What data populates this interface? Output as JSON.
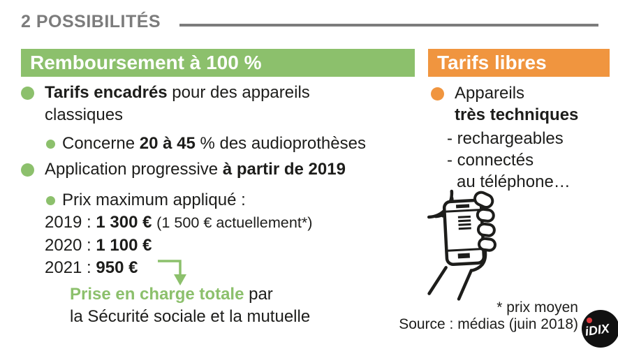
{
  "colors": {
    "green": "#8CC06C",
    "orange": "#F0953F",
    "gray": "#7C7C7C",
    "ink": "#1D1D1B",
    "red": "#E03A3E"
  },
  "header": {
    "title": "2 POSSIBILITÉS"
  },
  "left_column": {
    "banner": "Remboursement à 100 %",
    "bullet1": [
      {
        "t": "Tarifs encadrés",
        "b": true
      },
      {
        "t": " pour des appareils"
      },
      {
        "br": true
      },
      {
        "t": "classiques"
      }
    ],
    "bullet1_sub": [
      {
        "t": "Concerne "
      },
      {
        "t": "20 à 45",
        "b": true
      },
      {
        "t": " % des audioprothèses"
      }
    ],
    "bullet2": [
      {
        "t": "Application progressive "
      },
      {
        "t": "à partir de 2019",
        "b": true
      }
    ],
    "bullet2_sub": [
      {
        "t": "Prix maximum appliqué :"
      }
    ],
    "price_2019": [
      {
        "t": "2019 : "
      },
      {
        "t": "1 300 €",
        "b": true
      },
      {
        "t": " "
      },
      {
        "t": "(1 500 € actuellement*)",
        "small": true
      }
    ],
    "price_2020": [
      {
        "t": "2020 : "
      },
      {
        "t": "1 100 €",
        "b": true
      }
    ],
    "price_2021": [
      {
        "t": "2021 : "
      },
      {
        "t": "950 €",
        "b": true
      }
    ],
    "conclusion": [
      {
        "t": "Prise en charge totale",
        "b": true,
        "c": "green"
      },
      {
        "t": " par"
      },
      {
        "br": true
      },
      {
        "t": "la Sécurité sociale et la mutuelle"
      }
    ]
  },
  "right_column": {
    "banner": "Tarifs libres",
    "bullet": [
      {
        "t": "Appareils"
      },
      {
        "br": true
      },
      {
        "t": "très techniques",
        "b": true
      }
    ],
    "dash1": "- rechargeables",
    "dash2": "- connectés",
    "dash3": "au téléphone…"
  },
  "footer": {
    "footnote": "* prix moyen",
    "source": "Source : médias (juin 2018)",
    "logo": "iDIX"
  },
  "icons": {
    "arrow": "elbow-arrow-down",
    "phone": "hand-holding-smartphone-with-sound-waves",
    "logo": "idix-logo-badge"
  }
}
